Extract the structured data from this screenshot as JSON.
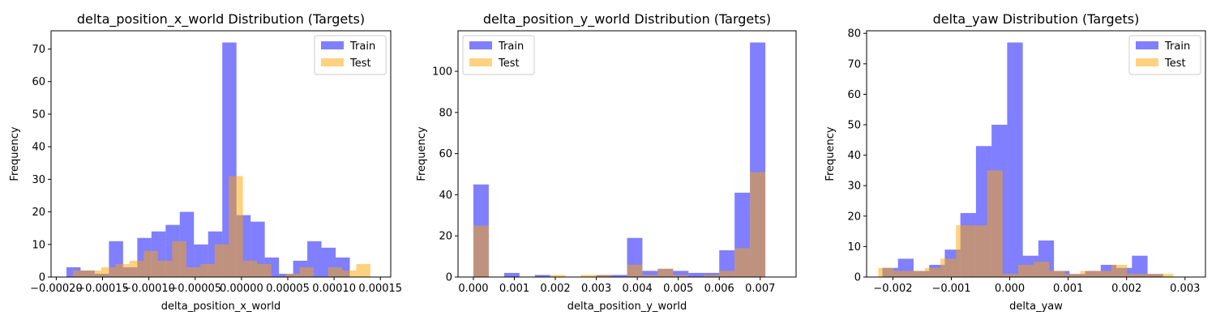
{
  "chart_data": [
    {
      "type": "bar",
      "title": "delta_position_x_world Distribution (Targets)",
      "xlabel": "delta_position_x_world",
      "ylabel": "Frequency",
      "xlim": [
        -0.0002056,
        0.0001612
      ],
      "ylim": [
        0,
        75.6
      ],
      "xticks": [
        -0.0002,
        -0.00015,
        -0.0001,
        -5e-05,
        0.0,
        5e-05,
        0.0001,
        0.00015
      ],
      "xtick_labels": [
        "−0.00020",
        "−0.00015",
        "−0.00010",
        "−0.00005",
        "0.00000",
        "0.00005",
        "0.00010",
        "0.00015"
      ],
      "yticks": [
        0,
        10,
        20,
        30,
        40,
        50,
        60,
        70
      ],
      "ytick_labels": [
        "0",
        "10",
        "20",
        "30",
        "40",
        "50",
        "60",
        "70"
      ],
      "legend": {
        "position": "upper right",
        "entries": [
          "Train",
          "Test"
        ]
      },
      "grid": false,
      "series": [
        {
          "name": "Train",
          "color": "#0000ff",
          "alpha": 0.5,
          "bin_start": -0.000189,
          "bin_width": 1.53e-05,
          "values": [
            3,
            2,
            1,
            11,
            3,
            12,
            14,
            16,
            20,
            10,
            14,
            72,
            19,
            17,
            6,
            1,
            5,
            11,
            9,
            6
          ]
        },
        {
          "name": "Test",
          "color": "#ffa500",
          "alpha": 0.5,
          "bin_start": -0.000182,
          "bin_width": 1.53e-05,
          "values": [
            2,
            2,
            3,
            4,
            5,
            8,
            5,
            11,
            3,
            4,
            10,
            31,
            5,
            4,
            0,
            1,
            3,
            0,
            3,
            2,
            4
          ]
        }
      ]
    },
    {
      "type": "bar",
      "title": "delta_position_y_world Distribution (Targets)",
      "xlabel": "delta_position_y_world",
      "ylabel": "Frequency",
      "xlim": [
        -0.000375,
        0.007875
      ],
      "ylim": [
        0,
        119.7
      ],
      "xticks": [
        0,
        0.001,
        0.002,
        0.003,
        0.004,
        0.005,
        0.006,
        0.007
      ],
      "xtick_labels": [
        "0.000",
        "0.001",
        "0.002",
        "0.003",
        "0.004",
        "0.005",
        "0.006",
        "0.007"
      ],
      "yticks": [
        0,
        20,
        40,
        60,
        80,
        100
      ],
      "ytick_labels": [
        "0",
        "20",
        "40",
        "60",
        "80",
        "100"
      ],
      "legend": {
        "position": "upper left",
        "entries": [
          "Train",
          "Test"
        ]
      },
      "grid": false,
      "series": [
        {
          "name": "Train",
          "color": "#0000ff",
          "alpha": 0.5,
          "bin_start": 0,
          "bin_width": 0.000375,
          "values": [
            45,
            0,
            2,
            0,
            1,
            0,
            0,
            0,
            1,
            1,
            19,
            3,
            4,
            3,
            2,
            2,
            13,
            41,
            114,
            0
          ]
        },
        {
          "name": "Test",
          "color": "#ffa500",
          "alpha": 0.5,
          "bin_start": 0,
          "bin_width": 0.000375,
          "values": [
            25,
            0,
            0,
            0,
            0,
            1,
            0,
            1,
            1,
            0,
            6,
            1,
            4,
            1,
            0,
            1,
            3,
            14,
            51,
            0
          ]
        }
      ]
    },
    {
      "type": "bar",
      "title": "delta_yaw Distribution (Targets)",
      "xlabel": "delta_yaw",
      "ylabel": "Frequency",
      "xlim": [
        -0.00245,
        0.00335
      ],
      "ylim": [
        0,
        80.85
      ],
      "xticks": [
        -0.002,
        -0.001,
        0.0,
        0.001,
        0.002,
        0.003
      ],
      "xtick_labels": [
        "−0.002",
        "−0.001",
        "0.000",
        "0.001",
        "0.002",
        "0.003"
      ],
      "yticks": [
        0,
        10,
        20,
        30,
        40,
        50,
        60,
        70,
        80
      ],
      "ytick_labels": [
        "0",
        "10",
        "20",
        "30",
        "40",
        "50",
        "60",
        "70",
        "80"
      ],
      "legend": {
        "position": "upper right",
        "entries": [
          "Train",
          "Test"
        ]
      },
      "grid": false,
      "series": [
        {
          "name": "Train",
          "color": "#0000ff",
          "alpha": 0.5,
          "bin_start": -0.00218,
          "bin_width": 0.000267,
          "values": [
            3,
            6,
            2,
            4,
            9,
            21,
            43,
            50,
            77,
            7,
            12,
            2,
            1,
            2,
            4,
            3,
            7,
            1
          ]
        },
        {
          "name": "Test",
          "color": "#ffa500",
          "alpha": 0.5,
          "bin_start": -0.00225,
          "bin_width": 0.000266,
          "values": [
            3,
            2,
            2,
            3,
            6,
            17,
            17,
            35,
            1,
            4,
            5,
            2,
            1,
            2,
            2,
            4,
            1,
            1,
            1
          ]
        }
      ]
    }
  ]
}
